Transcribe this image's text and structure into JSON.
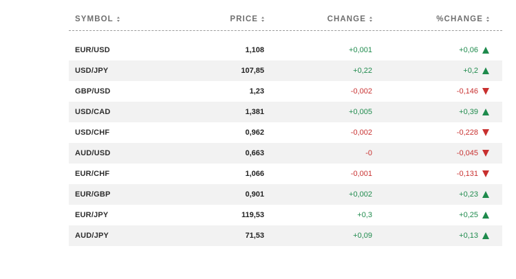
{
  "headers": {
    "symbol": "SYMBOL",
    "price": "PRICE",
    "change": "CHANGE",
    "pct_change": "%CHANGE"
  },
  "colors": {
    "positive": "#1e8a4c",
    "negative": "#c8302f",
    "alt_row": "#f2f2f2"
  },
  "rows": [
    {
      "symbol": "EUR/USD",
      "price": "1,108",
      "change": "+0,001",
      "pct_change": "+0,06",
      "direction": "up"
    },
    {
      "symbol": "USD/JPY",
      "price": "107,85",
      "change": "+0,22",
      "pct_change": "+0,2",
      "direction": "up"
    },
    {
      "symbol": "GBP/USD",
      "price": "1,23",
      "change": "-0,002",
      "pct_change": "-0,146",
      "direction": "down"
    },
    {
      "symbol": "USD/CAD",
      "price": "1,381",
      "change": "+0,005",
      "pct_change": "+0,39",
      "direction": "up"
    },
    {
      "symbol": "USD/CHF",
      "price": "0,962",
      "change": "-0,002",
      "pct_change": "-0,228",
      "direction": "down"
    },
    {
      "symbol": "AUD/USD",
      "price": "0,663",
      "change": "-0",
      "pct_change": "-0,045",
      "direction": "down"
    },
    {
      "symbol": "EUR/CHF",
      "price": "1,066",
      "change": "-0,001",
      "pct_change": "-0,131",
      "direction": "down"
    },
    {
      "symbol": "EUR/GBP",
      "price": "0,901",
      "change": "+0,002",
      "pct_change": "+0,23",
      "direction": "up"
    },
    {
      "symbol": "EUR/JPY",
      "price": "119,53",
      "change": "+0,3",
      "pct_change": "+0,25",
      "direction": "up"
    },
    {
      "symbol": "AUD/JPY",
      "price": "71,53",
      "change": "+0,09",
      "pct_change": "+0,13",
      "direction": "up"
    }
  ]
}
